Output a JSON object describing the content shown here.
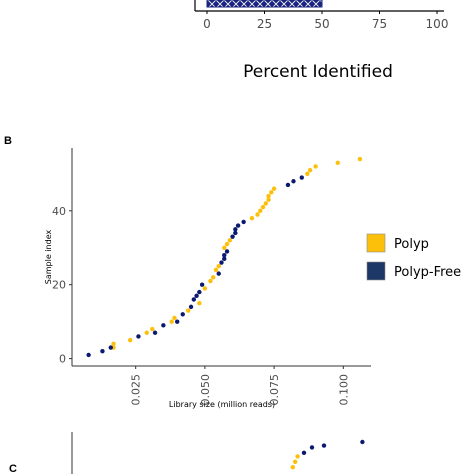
{
  "colors": {
    "polyp": "#fcbf0a",
    "polyp_free": "#0b1a6e",
    "legend_free": "#1d3766",
    "bar_fill": "#1a237e",
    "axis": "#333333"
  },
  "panel_a": {
    "xlabel": "Percent Identified",
    "tick_labels": [
      "0",
      "25",
      "50",
      "75",
      "100"
    ],
    "chart_data": {
      "type": "bar",
      "orientation": "horizontal",
      "xlim": [
        0,
        100
      ],
      "values": [
        50
      ],
      "fill_pattern": "diamond-hatch"
    }
  },
  "panel_b": {
    "panel_label": "B",
    "xlabel": "Library size (million reads)",
    "ylabel": "Sample index",
    "x_tick_labels": [
      "0.025",
      "0.050",
      "0.075",
      "0.100"
    ],
    "y_tick_labels": [
      "0",
      "20",
      "40"
    ],
    "legend": [
      {
        "name": "Polyp",
        "color_key": "polyp"
      },
      {
        "name": "Polyp-Free",
        "color_key": "legend_free"
      }
    ],
    "chart_data": {
      "type": "scatter",
      "xlabel": "Library size (million reads)",
      "ylabel": "Sample index",
      "xlim": [
        0.002,
        0.11
      ],
      "ylim": [
        -2,
        57
      ],
      "xticks": [
        0.025,
        0.05,
        0.075,
        0.1
      ],
      "yticks": [
        0,
        20,
        40
      ],
      "grid": false,
      "legend_position": "right",
      "series": [
        {
          "name": "Polyp",
          "points": [
            [
              0.017,
              3
            ],
            [
              0.017,
              4
            ],
            [
              0.023,
              5
            ],
            [
              0.029,
              7
            ],
            [
              0.031,
              8
            ],
            [
              0.038,
              10
            ],
            [
              0.039,
              11
            ],
            [
              0.044,
              13
            ],
            [
              0.048,
              15
            ],
            [
              0.05,
              19
            ],
            [
              0.052,
              21
            ],
            [
              0.053,
              22
            ],
            [
              0.054,
              24
            ],
            [
              0.055,
              25
            ],
            [
              0.057,
              30
            ],
            [
              0.058,
              31
            ],
            [
              0.059,
              32
            ],
            [
              0.067,
              38
            ],
            [
              0.069,
              39
            ],
            [
              0.07,
              40
            ],
            [
              0.071,
              41
            ],
            [
              0.072,
              42
            ],
            [
              0.073,
              43
            ],
            [
              0.073,
              44
            ],
            [
              0.074,
              45
            ],
            [
              0.075,
              46
            ],
            [
              0.087,
              50
            ],
            [
              0.088,
              51
            ],
            [
              0.09,
              52
            ],
            [
              0.098,
              53
            ],
            [
              0.106,
              54
            ]
          ]
        },
        {
          "name": "Polyp-Free",
          "points": [
            [
              0.008,
              1
            ],
            [
              0.013,
              2
            ],
            [
              0.016,
              3
            ],
            [
              0.026,
              6
            ],
            [
              0.032,
              7
            ],
            [
              0.035,
              9
            ],
            [
              0.04,
              10
            ],
            [
              0.042,
              12
            ],
            [
              0.045,
              14
            ],
            [
              0.046,
              16
            ],
            [
              0.047,
              17
            ],
            [
              0.048,
              18
            ],
            [
              0.049,
              20
            ],
            [
              0.055,
              23
            ],
            [
              0.056,
              26
            ],
            [
              0.057,
              27
            ],
            [
              0.057,
              28
            ],
            [
              0.058,
              29
            ],
            [
              0.06,
              33
            ],
            [
              0.061,
              34
            ],
            [
              0.061,
              35
            ],
            [
              0.062,
              36
            ],
            [
              0.064,
              37
            ],
            [
              0.08,
              47
            ],
            [
              0.082,
              48
            ],
            [
              0.085,
              49
            ]
          ]
        }
      ]
    }
  },
  "panel_c": {
    "panel_label": "C",
    "chart_data": {
      "type": "scatter",
      "series": [
        {
          "name": "Polyp",
          "points": [
            [
              0.276,
              0.3
            ],
            [
              0.279,
              0.45
            ],
            [
              0.282,
              0.6
            ]
          ]
        },
        {
          "name": "Polyp-Free",
          "points": [
            [
              0.29,
              0.7
            ],
            [
              0.3,
              0.85
            ],
            [
              0.315,
              0.9
            ],
            [
              0.363,
              1.0
            ]
          ]
        }
      ]
    }
  }
}
